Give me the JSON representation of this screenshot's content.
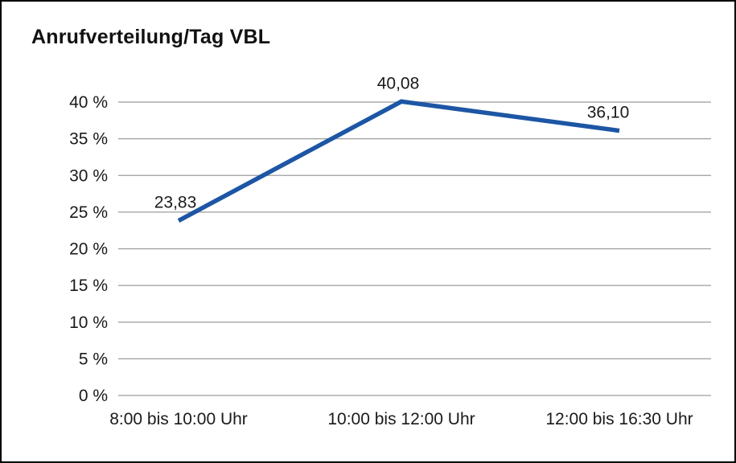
{
  "title": "Anrufverteilung/Tag VBL",
  "chart_data": {
    "type": "line",
    "title": "Anrufverteilung/Tag VBL",
    "categories": [
      "8:00 bis 10:00 Uhr",
      "10:00 bis 12:00 Uhr",
      "12:00 bis 16:30 Uhr"
    ],
    "values": [
      23.83,
      40.08,
      36.1
    ],
    "value_labels": [
      "23,83",
      "40,08",
      "36,10"
    ],
    "xlabel": "",
    "ylabel": "",
    "ylim": [
      0,
      40
    ],
    "ytick_step": 5,
    "ytick_labels": [
      "0 %",
      "5 %",
      "10 %",
      "15 %",
      "20 %",
      "25 %",
      "30 %",
      "35 %",
      "40 %"
    ],
    "grid": true,
    "legend": false,
    "line_color": "#1d56a5",
    "grid_color": "#9c9c9c",
    "text_color": "#1a1a1a"
  }
}
